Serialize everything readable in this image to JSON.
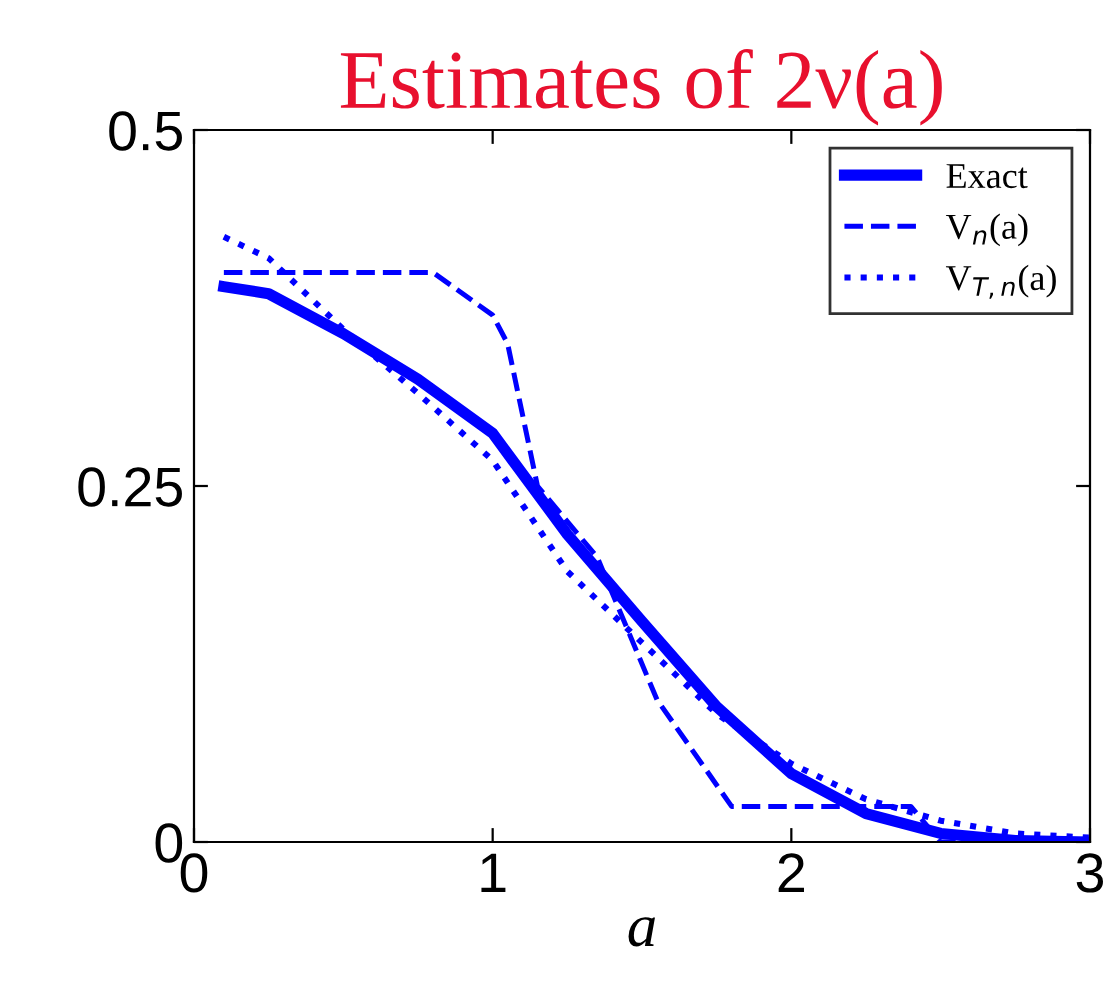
{
  "chart_data": {
    "type": "line",
    "title": "Estimates of 2ν(a)",
    "xlabel": "a",
    "xlim": [
      0,
      3
    ],
    "ylim": [
      0,
      0.5
    ],
    "xticks": [
      0,
      1,
      2,
      3
    ],
    "yticks": [
      0,
      0.25,
      0.5
    ],
    "grid": false,
    "legend": "top right",
    "series": [
      {
        "name": "Exact",
        "color": "#0000ff",
        "line_style": "solid",
        "x": [
          0.1,
          0.25,
          0.5,
          0.75,
          1,
          1.25,
          1.5,
          1.75,
          2,
          2.25,
          2.5,
          2.75,
          3
        ],
        "values": [
          0.39,
          0.385,
          0.357,
          0.325,
          0.287,
          0.216,
          0.155,
          0.095,
          0.048,
          0.02,
          0.006,
          0.001,
          0
        ]
      },
      {
        "name": "V$_{n}$(a)",
        "color": "#0000ff",
        "line_style": "dashed",
        "x": [
          0.1,
          0.8,
          1.0,
          1.05,
          1.15,
          1.35,
          1.55,
          1.8,
          2.4,
          2.5,
          3
        ],
        "values": [
          0.4,
          0.4,
          0.37,
          0.35,
          0.25,
          0.2,
          0.1,
          0.025,
          0.025,
          0,
          0
        ]
      },
      {
        "name": "V$_{T,n}$(a)",
        "color": "#0000ff",
        "line_style": "dotted",
        "x": [
          0.1,
          0.25,
          0.5,
          0.75,
          1,
          1.25,
          1.5,
          1.75,
          2,
          2.25,
          2.5,
          2.75,
          3
        ],
        "values": [
          0.425,
          0.41,
          0.36,
          0.315,
          0.268,
          0.19,
          0.14,
          0.09,
          0.055,
          0.03,
          0.015,
          0.006,
          0.003
        ]
      }
    ]
  }
}
